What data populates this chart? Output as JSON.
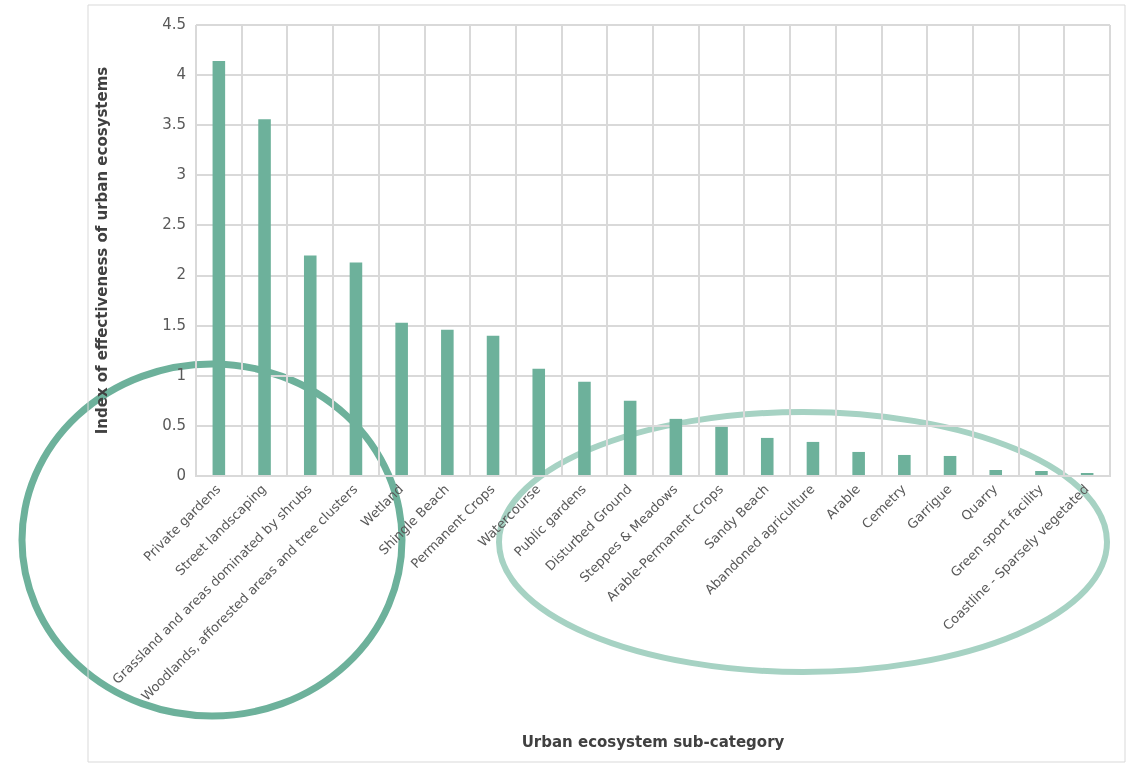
{
  "chart_data": {
    "type": "bar",
    "xlabel": "Urban ecosystem sub-category",
    "ylabel": "Index of effectiveness of urban ecosystems",
    "categories": [
      "Private gardens",
      "Street landscaping",
      "Grassland and areas dominated by shrubs",
      "Woodlands, afforested areas and tree clusters",
      "Wetland",
      "Shingle Beach",
      "Permanent Crops",
      "Watercourse",
      "Public gardens",
      "Disturbed Ground",
      "Steppes & Meadows",
      "Arable-Permanent Crops",
      "Sandy Beach",
      "Abandoned agriculture",
      "Arable",
      "Cemetry",
      "Garrigue",
      "Quarry",
      "Green sport facility",
      "Coastline - Sparsely vegetated"
    ],
    "values": [
      4.14,
      3.56,
      2.2,
      2.13,
      1.53,
      1.46,
      1.4,
      1.07,
      0.94,
      0.75,
      0.57,
      0.49,
      0.38,
      0.34,
      0.24,
      0.21,
      0.2,
      0.06,
      0.05,
      0.03
    ],
    "color": "#6db19b",
    "ylim": [
      0,
      4.5
    ],
    "yticks": [
      0,
      0.5,
      1,
      1.5,
      2,
      2.5,
      3,
      3.5,
      4,
      4.5
    ],
    "grid": true
  }
}
